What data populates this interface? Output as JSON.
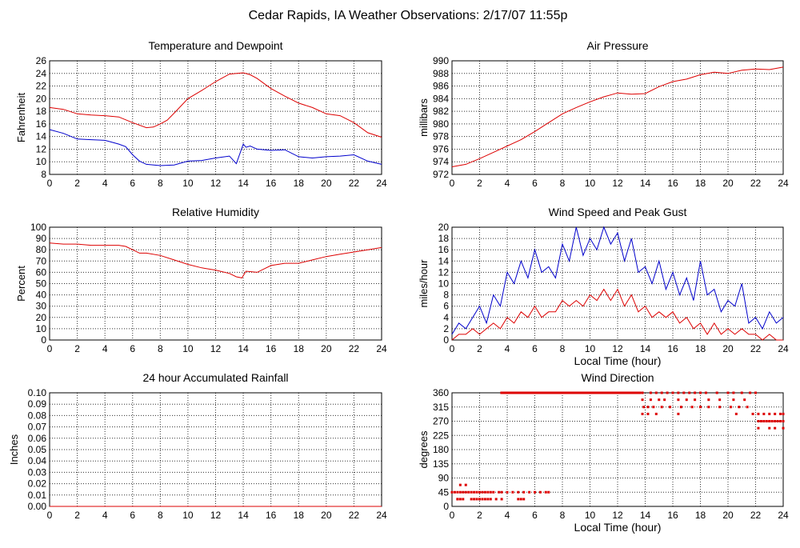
{
  "page_title": "Cedar Rapids, IA Weather Observations: 2/17/07 11:55p",
  "colors": {
    "red": "#dd0000",
    "blue": "#0000cc",
    "grid": "#333333"
  },
  "chart_data": [
    {
      "id": "temp",
      "type": "line",
      "title": "Temperature and Dewpoint",
      "xlabel": "",
      "ylabel": "Fahrenheit",
      "xlim": [
        0,
        24
      ],
      "ylim": [
        8,
        26
      ],
      "xticks": [
        0,
        2,
        4,
        6,
        8,
        10,
        12,
        14,
        16,
        18,
        20,
        22,
        24
      ],
      "yticks": [
        8,
        10,
        12,
        14,
        16,
        18,
        20,
        22,
        24,
        26
      ],
      "series": [
        {
          "color": "#dd0000",
          "x": [
            0,
            1,
            2,
            3,
            4,
            5,
            6,
            7,
            7.5,
            8,
            8.5,
            9,
            10,
            11,
            12,
            13,
            14,
            14.5,
            15,
            16,
            17,
            18,
            19,
            20,
            21,
            22,
            23,
            24
          ],
          "y": [
            18.6,
            18.3,
            17.6,
            17.4,
            17.3,
            17.1,
            16.2,
            15.4,
            15.5,
            16,
            16.6,
            17.7,
            20,
            21.3,
            22.7,
            23.9,
            24.1,
            23.8,
            23.2,
            21.6,
            20.4,
            19.3,
            18.6,
            17.6,
            17.3,
            16.2,
            14.6,
            13.9
          ]
        },
        {
          "color": "#0000cc",
          "x": [
            0,
            1,
            2,
            3,
            4,
            5,
            5.5,
            6,
            6.5,
            7,
            8,
            9,
            10,
            11,
            12,
            13,
            13.5,
            14,
            14.2,
            14.5,
            15,
            16,
            17,
            18,
            19,
            20,
            21,
            22,
            23,
            24
          ],
          "y": [
            15.1,
            14.5,
            13.6,
            13.5,
            13.4,
            12.8,
            12.4,
            11.1,
            10.1,
            9.6,
            9.4,
            9.5,
            10.1,
            10.2,
            10.6,
            10.9,
            9.7,
            12.8,
            12.3,
            12.5,
            12.0,
            11.8,
            11.9,
            10.8,
            10.6,
            10.8,
            10.9,
            11.1,
            10.1,
            9.6
          ]
        }
      ]
    },
    {
      "id": "pressure",
      "type": "line",
      "title": "Air Pressure",
      "xlabel": "",
      "ylabel": "millibars",
      "xlim": [
        0,
        24
      ],
      "ylim": [
        972,
        990
      ],
      "xticks": [
        0,
        2,
        4,
        6,
        8,
        10,
        12,
        14,
        16,
        18,
        20,
        22,
        24
      ],
      "yticks": [
        972,
        974,
        976,
        978,
        980,
        982,
        984,
        986,
        988,
        990
      ],
      "series": [
        {
          "color": "#dd0000",
          "x": [
            0,
            1,
            2,
            3,
            4,
            5,
            6,
            7,
            8,
            9,
            10,
            11,
            12,
            13,
            14,
            15,
            16,
            17,
            18,
            19,
            20,
            21,
            22,
            23,
            24
          ],
          "y": [
            973.2,
            973.6,
            974.5,
            975.5,
            976.5,
            977.5,
            978.8,
            980.2,
            981.6,
            982.6,
            983.5,
            984.3,
            984.9,
            984.7,
            984.8,
            985.9,
            986.7,
            987.1,
            987.8,
            988.2,
            988.0,
            988.5,
            988.7,
            988.6,
            989.0
          ]
        }
      ]
    },
    {
      "id": "humidity",
      "type": "line",
      "title": "Relative Humidity",
      "xlabel": "",
      "ylabel": "Percent",
      "xlim": [
        0,
        24
      ],
      "ylim": [
        0,
        100
      ],
      "xticks": [
        0,
        2,
        4,
        6,
        8,
        10,
        12,
        14,
        16,
        18,
        20,
        22,
        24
      ],
      "yticks": [
        0,
        10,
        20,
        30,
        40,
        50,
        60,
        70,
        80,
        90,
        100
      ],
      "series": [
        {
          "color": "#dd0000",
          "x": [
            0,
            1,
            2,
            3,
            4,
            5,
            5.5,
            6,
            6.5,
            7,
            8,
            9,
            10,
            11,
            12,
            13,
            13.5,
            13.9,
            14.2,
            15,
            16,
            17,
            18,
            19,
            20,
            21,
            22,
            23,
            24
          ],
          "y": [
            86,
            85,
            85,
            84,
            84,
            84,
            83,
            80,
            77,
            77,
            75,
            71,
            67,
            64,
            62,
            59,
            56,
            55,
            61,
            60,
            66,
            68,
            68,
            71,
            74,
            76,
            78,
            80,
            82
          ]
        }
      ]
    },
    {
      "id": "wind",
      "type": "line",
      "title": "Wind Speed and Peak Gust",
      "xlabel": "Local Time (hour)",
      "ylabel": "miles/hour",
      "xlim": [
        0,
        24
      ],
      "ylim": [
        0,
        20
      ],
      "xticks": [
        0,
        2,
        4,
        6,
        8,
        10,
        12,
        14,
        16,
        18,
        20,
        22,
        24
      ],
      "yticks": [
        0,
        2,
        4,
        6,
        8,
        10,
        12,
        14,
        16,
        18,
        20
      ],
      "series": [
        {
          "color": "#0000cc",
          "x": [
            0,
            0.5,
            1,
            1.5,
            2,
            2.5,
            3,
            3.5,
            4,
            4.5,
            5,
            5.5,
            6,
            6.5,
            7,
            7.5,
            8,
            8.5,
            9,
            9.5,
            10,
            10.5,
            11,
            11.5,
            12,
            12.5,
            13,
            13.5,
            14,
            14.5,
            15,
            15.5,
            16,
            16.5,
            17,
            17.5,
            18,
            18.5,
            19,
            19.5,
            20,
            20.5,
            21,
            21.5,
            22,
            22.5,
            23,
            23.5,
            24
          ],
          "y": [
            1,
            3,
            2,
            4,
            6,
            3,
            8,
            6,
            12,
            10,
            14,
            11,
            16,
            12,
            13,
            11,
            17,
            14,
            20,
            15,
            18,
            16,
            20,
            17,
            19,
            14,
            18,
            12,
            13,
            10,
            14,
            9,
            12,
            8,
            11,
            7,
            14,
            8,
            9,
            5,
            7,
            6,
            10,
            3,
            4,
            2,
            5,
            3,
            4
          ]
        },
        {
          "color": "#dd0000",
          "x": [
            0,
            0.5,
            1,
            1.5,
            2,
            2.5,
            3,
            3.5,
            4,
            4.5,
            5,
            5.5,
            6,
            6.5,
            7,
            7.5,
            8,
            8.5,
            9,
            9.5,
            10,
            10.5,
            11,
            11.5,
            12,
            12.5,
            13,
            13.5,
            14,
            14.5,
            15,
            15.5,
            16,
            16.5,
            17,
            17.5,
            18,
            18.5,
            19,
            19.5,
            20,
            20.5,
            21,
            21.5,
            22,
            22.5,
            23,
            23.5,
            24
          ],
          "y": [
            0,
            1,
            1,
            2,
            1,
            2,
            3,
            2,
            4,
            3,
            5,
            4,
            6,
            4,
            5,
            5,
            7,
            6,
            7,
            6,
            8,
            7,
            9,
            7,
            9,
            6,
            8,
            5,
            6,
            4,
            5,
            4,
            5,
            3,
            4,
            2,
            3,
            1,
            3,
            1,
            2,
            1,
            2,
            1,
            1,
            0,
            1,
            0,
            0
          ]
        }
      ]
    },
    {
      "id": "rain",
      "type": "line",
      "title": "24 hour Accumulated Rainfall",
      "xlabel": "",
      "ylabel": "Inches",
      "xlim": [
        0,
        24
      ],
      "ylim": [
        0,
        0.1
      ],
      "xticks": [
        0,
        2,
        4,
        6,
        8,
        10,
        12,
        14,
        16,
        18,
        20,
        22,
        24
      ],
      "yticks": [
        "0.00",
        "0.01",
        "0.02",
        "0.03",
        "0.04",
        "0.05",
        "0.06",
        "0.07",
        "0.08",
        "0.09",
        "0.10"
      ],
      "series": [
        {
          "color": "#dd0000",
          "x": [
            0,
            24
          ],
          "y": [
            0,
            0
          ]
        }
      ]
    },
    {
      "id": "direction",
      "type": "scatter",
      "title": "Wind Direction",
      "xlabel": "Local Time (hour)",
      "ylabel": "degrees",
      "xlim": [
        0,
        24
      ],
      "ylim": [
        0,
        360
      ],
      "xticks": [
        0,
        2,
        4,
        6,
        8,
        10,
        12,
        14,
        16,
        18,
        20,
        22,
        24
      ],
      "yticks": [
        0,
        45,
        90,
        135,
        180,
        225,
        270,
        315,
        360
      ],
      "series": [
        {
          "color": "#dd0000",
          "x": [
            0,
            0.2,
            0.4,
            0.6,
            0.8,
            1.0,
            1.2,
            1.4,
            1.6,
            1.8,
            2.0,
            2.2,
            2.4,
            2.6,
            2.8,
            3.0,
            3.4,
            3.6,
            4.0,
            4.4,
            4.8,
            5.2,
            5.6,
            6.0,
            6.4,
            6.8,
            7.0,
            0.4,
            0.6,
            0.8,
            1.4,
            1.6,
            1.8,
            2.0,
            2.2,
            2.4,
            2.6,
            2.8,
            3.2,
            3.6,
            4.8,
            5.0,
            5.2,
            0.4,
            1.0,
            0.6,
            3.6,
            4.0,
            4.4,
            4.8,
            5.2,
            5.6,
            6.0,
            6.4,
            6.8,
            7.2,
            7.6,
            8.0,
            8.4,
            8.8,
            9.2,
            9.6,
            10.0,
            10.4,
            10.8,
            11.2,
            11.6,
            12.0,
            12.4,
            12.8,
            13.2,
            13.6,
            13.8,
            14.4,
            14.8,
            15.2,
            15.6,
            16.0,
            16.4,
            16.8,
            17.2,
            17.6,
            18.0,
            18.4,
            19.2,
            20.0,
            20.4,
            21.0,
            21.6,
            22.0,
            13.8,
            14.4,
            15.0,
            15.4,
            16.4,
            17.0,
            17.6,
            18.6,
            19.4,
            20.4,
            21.2,
            13.9,
            14.2,
            14.6,
            15.2,
            15.8,
            16.6,
            17.4,
            18.0,
            18.6,
            19.4,
            20.2,
            20.8,
            21.4,
            13.8,
            14.2,
            14.8,
            16.4,
            20.6,
            21.8,
            22.2,
            22.6,
            23.0,
            23.4,
            23.8,
            24.0,
            22.2,
            22.4,
            22.6,
            22.8,
            23.0,
            23.2,
            23.4,
            23.6,
            23.8,
            24.0,
            22.2,
            23.0,
            23.4,
            24.0,
            22.6,
            23.0
          ],
          "y": [
            45,
            45,
            45,
            45,
            45,
            45,
            45,
            45,
            45,
            45,
            45,
            45,
            45,
            45,
            45,
            45,
            45,
            45,
            45,
            45,
            45,
            45,
            45,
            45,
            45,
            45,
            45,
            23,
            23,
            23,
            23,
            23,
            23,
            23,
            23,
            23,
            23,
            23,
            23,
            23,
            23,
            23,
            23,
            23,
            68,
            68,
            360,
            360,
            360,
            360,
            360,
            360,
            360,
            360,
            360,
            360,
            360,
            360,
            360,
            360,
            360,
            360,
            360,
            360,
            360,
            360,
            360,
            360,
            360,
            360,
            360,
            360,
            360,
            360,
            360,
            360,
            360,
            360,
            360,
            360,
            360,
            360,
            360,
            360,
            360,
            360,
            360,
            360,
            360,
            360,
            338,
            338,
            338,
            338,
            338,
            338,
            338,
            338,
            338,
            338,
            338,
            315,
            315,
            315,
            315,
            315,
            315,
            315,
            315,
            315,
            315,
            315,
            315,
            315,
            293,
            293,
            293,
            293,
            293,
            293,
            293,
            293,
            293,
            293,
            293,
            293,
            270,
            270,
            270,
            270,
            270,
            270,
            270,
            270,
            270,
            270,
            248,
            248,
            248,
            248,
            270,
            270
          ]
        }
      ]
    }
  ]
}
